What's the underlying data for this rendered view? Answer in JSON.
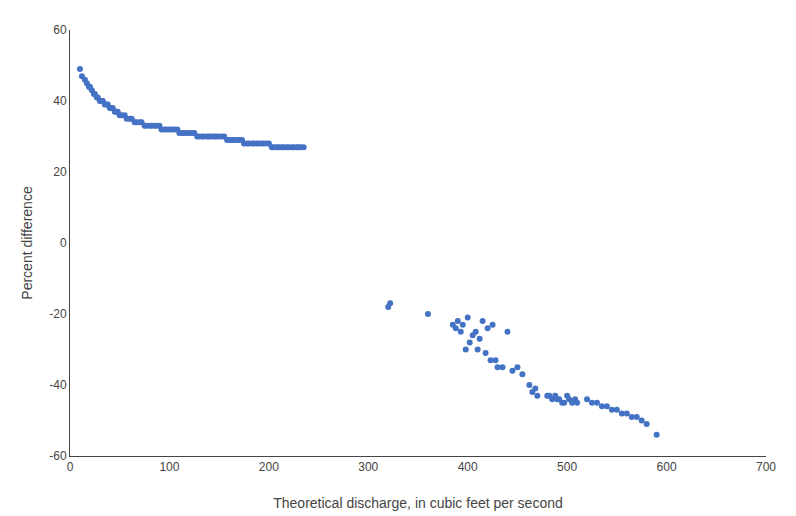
{
  "chart_data": {
    "type": "scatter",
    "xlabel": "Theoretical discharge, in cubic feet per second",
    "ylabel": "Percent difference",
    "x": [
      10,
      12,
      15,
      17,
      19,
      20,
      22,
      24,
      25,
      27,
      28,
      30,
      32,
      33,
      35,
      37,
      38,
      40,
      42,
      43,
      45,
      47,
      48,
      50,
      52,
      55,
      57,
      60,
      62,
      65,
      67,
      70,
      72,
      75,
      77,
      80,
      82,
      85,
      87,
      90,
      92,
      95,
      97,
      100,
      103,
      105,
      108,
      110,
      113,
      115,
      118,
      120,
      123,
      125,
      128,
      130,
      133,
      135,
      138,
      140,
      142,
      145,
      147,
      150,
      153,
      155,
      158,
      160,
      163,
      165,
      168,
      170,
      173,
      175,
      178,
      180,
      183,
      185,
      188,
      190,
      193,
      195,
      198,
      200,
      203,
      205,
      208,
      210,
      213,
      215,
      218,
      220,
      223,
      225,
      228,
      230,
      232,
      235,
      320,
      322,
      360,
      385,
      388,
      390,
      393,
      395,
      398,
      400,
      402,
      405,
      408,
      410,
      412,
      415,
      418,
      420,
      423,
      425,
      428,
      430,
      435,
      440,
      445,
      450,
      455,
      462,
      465,
      468,
      470,
      480,
      482,
      485,
      488,
      490,
      492,
      495,
      497,
      500,
      502,
      505,
      508,
      510,
      520,
      525,
      530,
      535,
      540,
      545,
      550,
      555,
      560,
      565,
      570,
      575,
      580,
      590
    ],
    "values": [
      49,
      47,
      46,
      45,
      44,
      44,
      43,
      42,
      42,
      41,
      41,
      40,
      40,
      40,
      39,
      39,
      39,
      38,
      38,
      38,
      37,
      37,
      37,
      36,
      36,
      36,
      35,
      35,
      35,
      34,
      34,
      34,
      34,
      33,
      33,
      33,
      33,
      33,
      33,
      33,
      32,
      32,
      32,
      32,
      32,
      32,
      32,
      31,
      31,
      31,
      31,
      31,
      31,
      31,
      30,
      30,
      30,
      30,
      30,
      30,
      30,
      30,
      30,
      30,
      30,
      30,
      29,
      29,
      29,
      29,
      29,
      29,
      29,
      28,
      28,
      28,
      28,
      28,
      28,
      28,
      28,
      28,
      28,
      28,
      27,
      27,
      27,
      27,
      27,
      27,
      27,
      27,
      27,
      27,
      27,
      27,
      27,
      27,
      -18,
      -17,
      -20,
      -23,
      -24,
      -22,
      -25,
      -23,
      -30,
      -21,
      -28,
      -26,
      -25,
      -30,
      -27,
      -22,
      -31,
      -24,
      -33,
      -23,
      -33,
      -35,
      -35,
      -25,
      -36,
      -35,
      -37,
      -40,
      -42,
      -41,
      -43,
      -43,
      -43,
      -44,
      -43,
      -44,
      -44,
      -45,
      -45,
      -43,
      -44,
      -45,
      -44,
      -45,
      -44,
      -45,
      -45,
      -46,
      -46,
      -47,
      -47,
      -48,
      -48,
      -49,
      -49,
      -50,
      -51,
      -54
    ],
    "color": "#4472c4",
    "marker": "circle",
    "xlim": [
      0,
      700
    ],
    "ylim": [
      -60,
      60
    ],
    "xticks": [
      0,
      100,
      200,
      300,
      400,
      500,
      600,
      700
    ],
    "yticks": [
      -60,
      -40,
      -20,
      0,
      20,
      40,
      60
    ],
    "grid": false
  }
}
